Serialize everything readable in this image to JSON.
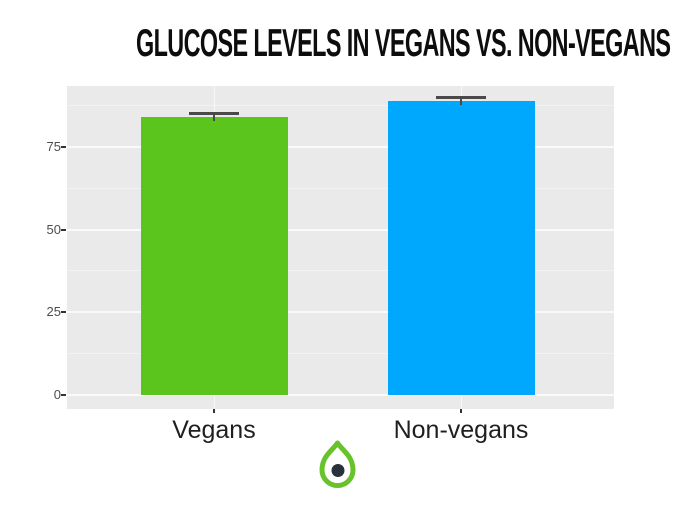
{
  "title": "GLUCOSE LEVELS IN VEGANS VS. NON-VEGANS",
  "chart_data": {
    "type": "bar",
    "title": "GLUCOSE LEVELS IN VEGANS VS. NON-VEGANS",
    "categories": [
      "Vegans",
      "Non-vegans"
    ],
    "values": [
      84,
      89
    ],
    "errors": [
      1.2,
      1.2
    ],
    "bar_colors": [
      "#5bc41d",
      "#00a8fd"
    ],
    "xlabel": "",
    "ylabel": "",
    "yticks": [
      0,
      25,
      50,
      75
    ],
    "ylim": [
      0,
      93.4
    ],
    "grid": "horizontal major + minor gridlines, light-gray panel (ggplot style)",
    "legend": "none"
  },
  "logo": {
    "name": "droplet-logo",
    "ring_color": "#68c22a",
    "dot_color": "#27323c"
  },
  "colors": {
    "panel_background": "#eaeaea",
    "gridline_major": "#fafafa",
    "gridline_minor": "#f2f2f2",
    "error_bar": "#4a4a4a",
    "tick_label": "#4d4d4d",
    "axis_label": "#1f1f1f",
    "title_text": "#0d0d0d",
    "vegans_bar": "#5bc41d",
    "non_vegans_bar": "#00a8fd"
  }
}
